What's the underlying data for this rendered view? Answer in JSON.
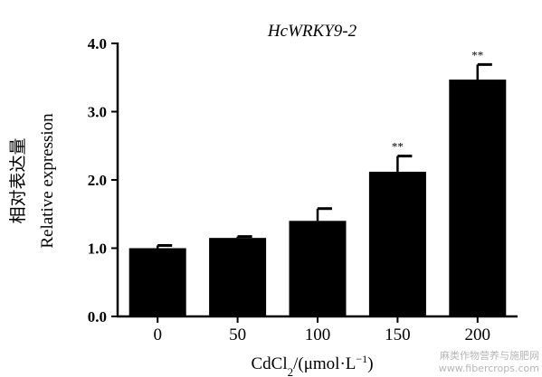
{
  "chart_data": {
    "type": "bar",
    "title": "HcWRKY9-2",
    "ylabel_cn": "相对表达量",
    "ylabel": "Relative expression",
    "xlabel": "CdCl₂/(μmol·L⁻¹)",
    "categories": [
      "0",
      "50",
      "100",
      "150",
      "200"
    ],
    "values": [
      1.0,
      1.15,
      1.4,
      2.12,
      3.47
    ],
    "errors": [
      0.04,
      0.02,
      0.18,
      0.23,
      0.22
    ],
    "significance": [
      "",
      "",
      "",
      "**",
      "**"
    ],
    "ylim": [
      0.0,
      4.0
    ],
    "yticks": [
      "0.0",
      "1.0",
      "2.0",
      "3.0",
      "4.0"
    ],
    "grid": false,
    "bar_color": "#000000"
  },
  "watermark": {
    "line1": "麻类作物营养与施肥网",
    "line2": "www.fibercrops.com"
  }
}
